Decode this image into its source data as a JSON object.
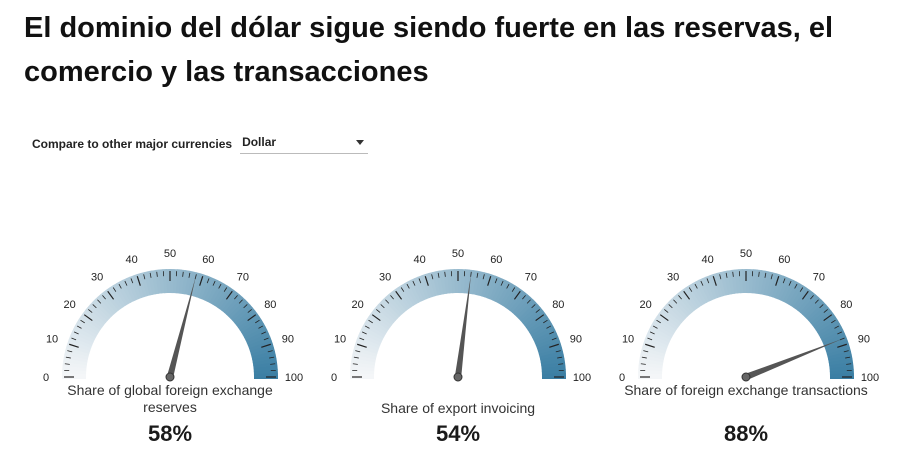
{
  "title": "El dominio del dólar sigue siendo fuerte en las reservas, el comercio y las transacciones",
  "compare": {
    "label": "Compare to other major currencies",
    "selected": "Dollar"
  },
  "colors": {
    "gauge_light": "#f4f6f8",
    "gauge_dark": "#3a7ea3",
    "needle": "#555555"
  },
  "chart_data": [
    {
      "type": "gauge",
      "label": "Share of global foreign exchange reserves",
      "value": 58,
      "display": "58%",
      "range": [
        0,
        100
      ],
      "tick_labels": [
        "0",
        "10",
        "20",
        "30",
        "40",
        "50",
        "60",
        "70",
        "80",
        "90",
        "100"
      ]
    },
    {
      "type": "gauge",
      "label": "Share of export invoicing",
      "value": 54,
      "display": "54%",
      "range": [
        0,
        100
      ],
      "tick_labels": [
        "0",
        "10",
        "20",
        "30",
        "40",
        "50",
        "60",
        "70",
        "80",
        "90",
        "100"
      ]
    },
    {
      "type": "gauge",
      "label": "Share of foreign exchange transactions",
      "value": 88,
      "display": "88%",
      "range": [
        0,
        100
      ],
      "tick_labels": [
        "0",
        "10",
        "20",
        "30",
        "40",
        "50",
        "60",
        "70",
        "80",
        "90",
        "100"
      ]
    }
  ]
}
